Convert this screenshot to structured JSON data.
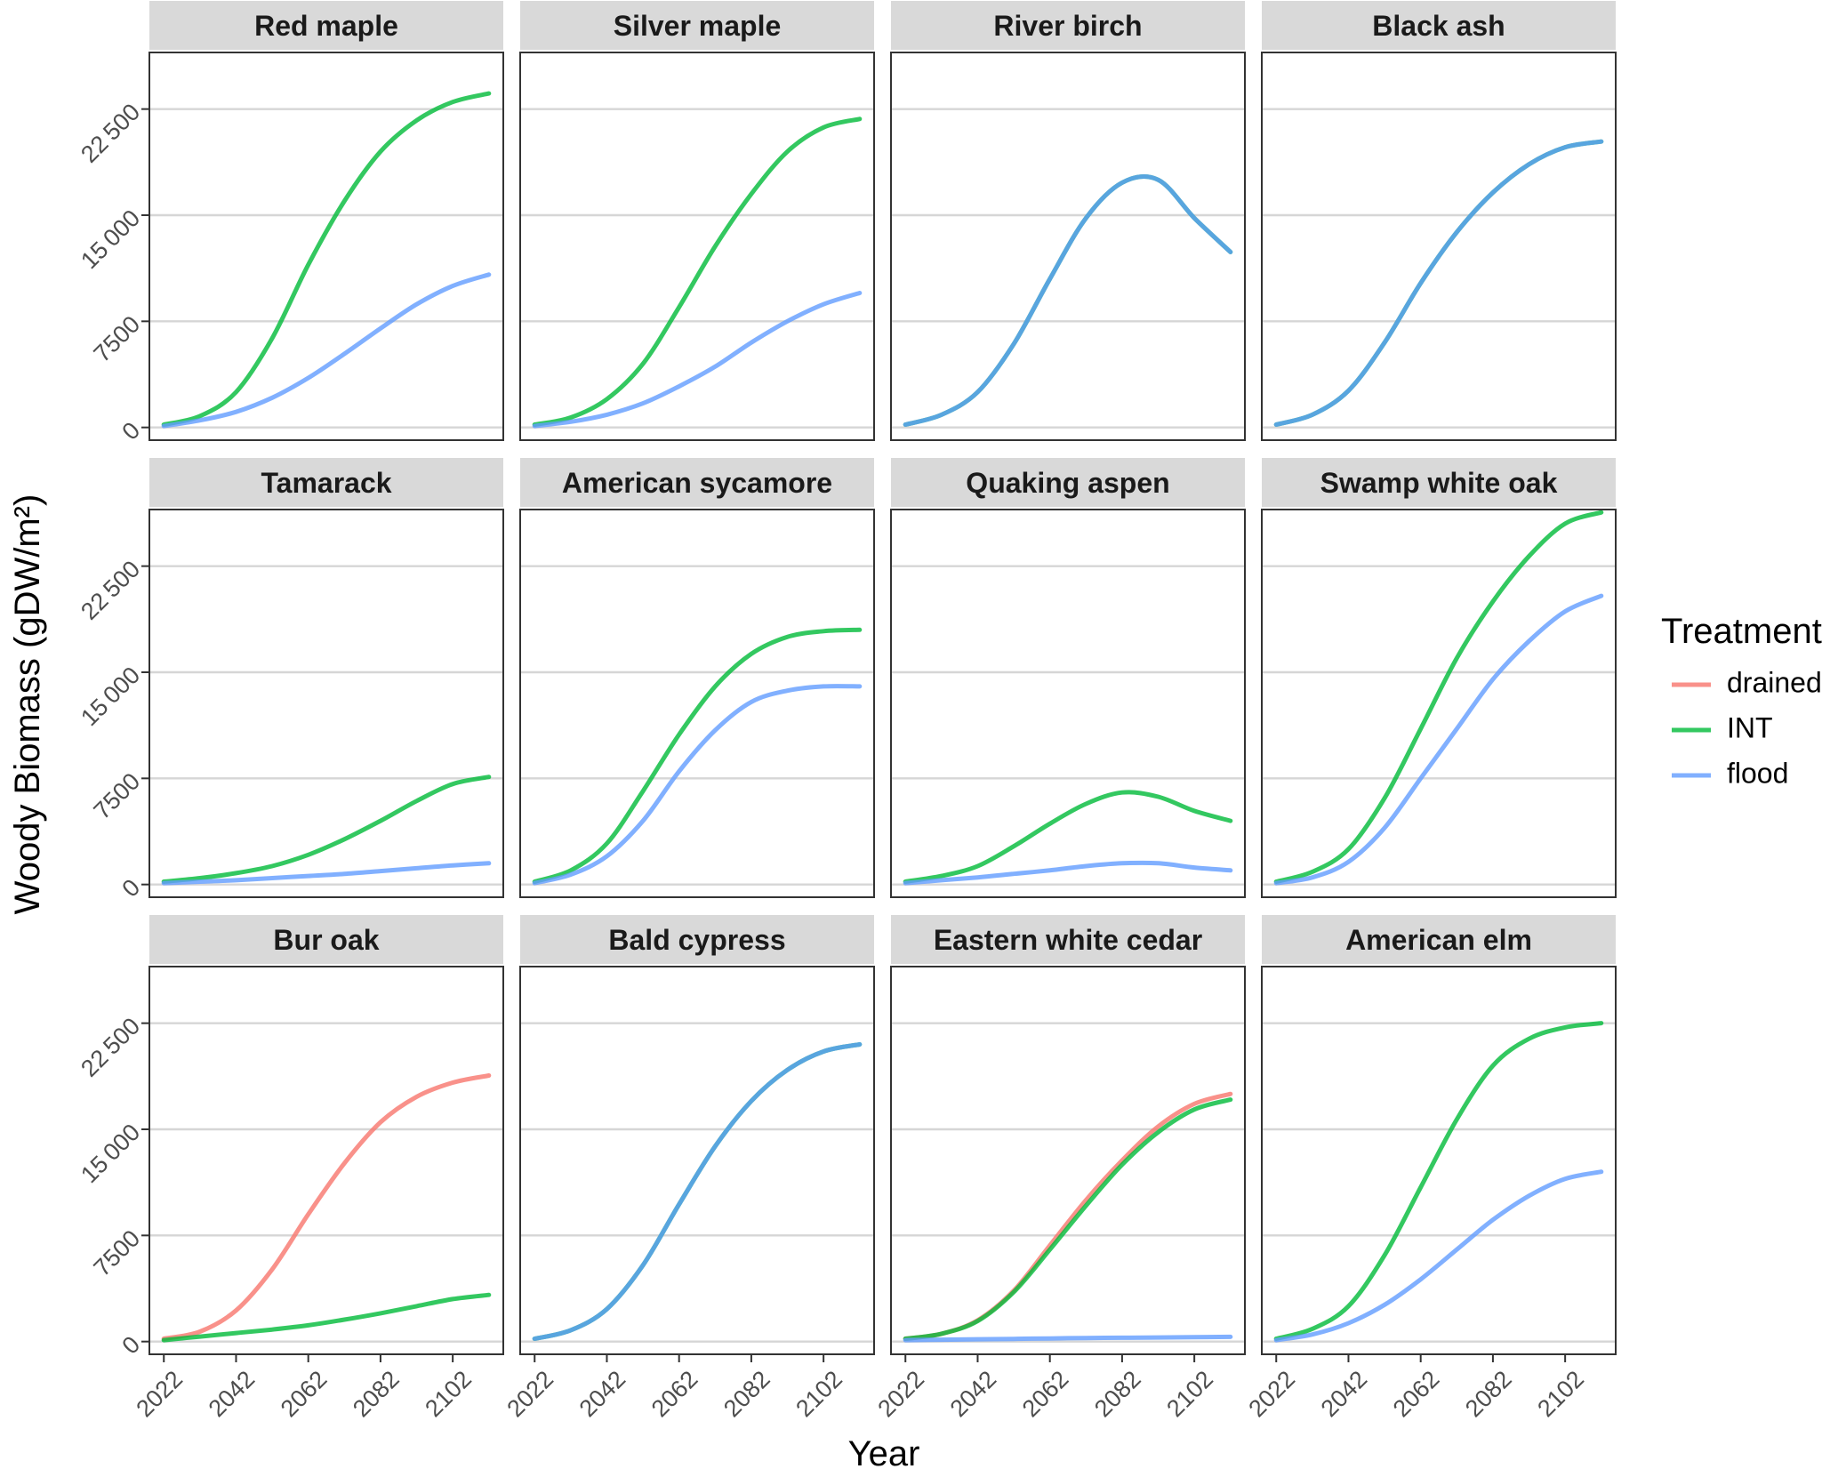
{
  "chart_data": {
    "type": "line",
    "facet_layout": "3 rows x 4 columns, shared axes",
    "xlabel": "Year",
    "ylabel": "Woody Biomass (gDW/m²)",
    "x_ticks": [
      "2022",
      "2042",
      "2062",
      "2082",
      "2102"
    ],
    "y_ticks": [
      "0",
      "7500",
      "15000",
      "22500"
    ],
    "xlim": [
      2018,
      2116
    ],
    "ylim": [
      -900,
      26500
    ],
    "grid": "horizontal major lines only",
    "legend": {
      "title": "Treatment",
      "position": "right",
      "entries": [
        {
          "label": "drained",
          "color": "#F8766D"
        },
        {
          "label": "INT",
          "color": "#00BA38"
        },
        {
          "label": "flood",
          "color": "#619CFF"
        }
      ]
    },
    "x": [
      2022,
      2032,
      2042,
      2052,
      2062,
      2072,
      2082,
      2092,
      2102,
      2112
    ],
    "panels": [
      {
        "title": "Red maple",
        "series": [
          {
            "name": "INT",
            "values": [
              200,
              800,
              2500,
              6300,
              11500,
              16000,
              19500,
              21700,
              23000,
              23600
            ]
          },
          {
            "name": "flood",
            "values": [
              100,
              500,
              1100,
              2100,
              3500,
              5200,
              7000,
              8700,
              10000,
              10800
            ]
          }
        ]
      },
      {
        "title": "Silver maple",
        "series": [
          {
            "name": "INT",
            "values": [
              200,
              700,
              2000,
              4500,
              8500,
              12800,
              16500,
              19500,
              21200,
              21800
            ]
          },
          {
            "name": "flood",
            "values": [
              100,
              400,
              900,
              1700,
              2900,
              4300,
              6000,
              7500,
              8700,
              9500
            ]
          }
        ]
      },
      {
        "title": "River birch",
        "series": [
          {
            "name": "INT",
            "values": [
              200,
              900,
              2500,
              5900,
              10500,
              14800,
              17300,
              17500,
              14800,
              12400
            ]
          },
          {
            "name": "flood",
            "values": [
              200,
              900,
              2500,
              5900,
              10500,
              14800,
              17300,
              17500,
              14800,
              12400
            ]
          }
        ]
      },
      {
        "title": "Black ash",
        "series": [
          {
            "name": "INT",
            "values": [
              200,
              900,
              2600,
              6000,
              10200,
              13800,
              16600,
              18600,
              19800,
              20200
            ]
          },
          {
            "name": "flood",
            "values": [
              200,
              900,
              2600,
              6000,
              10200,
              13800,
              16600,
              18600,
              19800,
              20200
            ]
          }
        ]
      },
      {
        "title": "Tamarack",
        "series": [
          {
            "name": "INT",
            "values": [
              200,
              450,
              800,
              1300,
              2100,
              3200,
              4500,
              5900,
              7100,
              7600
            ]
          },
          {
            "name": "flood",
            "values": [
              100,
              200,
              300,
              450,
              600,
              750,
              950,
              1150,
              1350,
              1500
            ]
          }
        ]
      },
      {
        "title": "American sycamore",
        "series": [
          {
            "name": "INT",
            "values": [
              200,
              1000,
              2900,
              6600,
              10600,
              14000,
              16300,
              17500,
              17900,
              18000
            ]
          },
          {
            "name": "flood",
            "values": [
              100,
              700,
              2000,
              4500,
              8000,
              10900,
              12900,
              13700,
              14000,
              14000
            ]
          }
        ]
      },
      {
        "title": "Quaking aspen",
        "series": [
          {
            "name": "INT",
            "values": [
              200,
              600,
              1300,
              2700,
              4300,
              5700,
              6500,
              6200,
              5200,
              4500
            ]
          },
          {
            "name": "flood",
            "values": [
              100,
              300,
              500,
              750,
              1000,
              1300,
              1500,
              1500,
              1200,
              1000
            ]
          }
        ]
      },
      {
        "title": "Swamp white oak",
        "series": [
          {
            "name": "INT",
            "values": [
              200,
              900,
              2500,
              6100,
              11000,
              16000,
              20000,
              23200,
              25500,
              26300
            ]
          },
          {
            "name": "flood",
            "values": [
              100,
              500,
              1600,
              4000,
              7500,
              11000,
              14500,
              17200,
              19300,
              20400
            ]
          }
        ]
      },
      {
        "title": "Bur oak",
        "series": [
          {
            "name": "drained",
            "values": [
              200,
              700,
              2200,
              5100,
              9000,
              12600,
              15500,
              17300,
              18300,
              18800
            ]
          },
          {
            "name": "INT",
            "values": [
              100,
              350,
              600,
              850,
              1150,
              1550,
              2000,
              2500,
              3000,
              3300
            ]
          }
        ]
      },
      {
        "title": "Bald cypress",
        "series": [
          {
            "name": "INT",
            "values": [
              200,
              800,
              2300,
              5400,
              9700,
              13800,
              17000,
              19200,
              20500,
              21000
            ]
          },
          {
            "name": "flood",
            "values": [
              200,
              800,
              2300,
              5400,
              9700,
              13800,
              17000,
              19200,
              20500,
              21000
            ]
          }
        ]
      },
      {
        "title": "Eastern white cedar",
        "series": [
          {
            "name": "drained",
            "values": [
              200,
              550,
              1500,
              3600,
              6800,
              10000,
              12800,
              15200,
              16800,
              17500
            ]
          },
          {
            "name": "INT",
            "values": [
              200,
              550,
              1450,
              3500,
              6500,
              9600,
              12500,
              14800,
              16400,
              17100
            ]
          },
          {
            "name": "flood",
            "values": [
              100,
              130,
              160,
              190,
              220,
              250,
              270,
              290,
              310,
              330
            ]
          }
        ]
      },
      {
        "title": "American elm",
        "series": [
          {
            "name": "INT",
            "values": [
              200,
              900,
              2500,
              6100,
              10900,
              15700,
              19500,
              21400,
              22200,
              22500
            ]
          },
          {
            "name": "flood",
            "values": [
              100,
              500,
              1300,
              2600,
              4400,
              6500,
              8600,
              10300,
              11500,
              12000
            ]
          }
        ]
      }
    ]
  }
}
